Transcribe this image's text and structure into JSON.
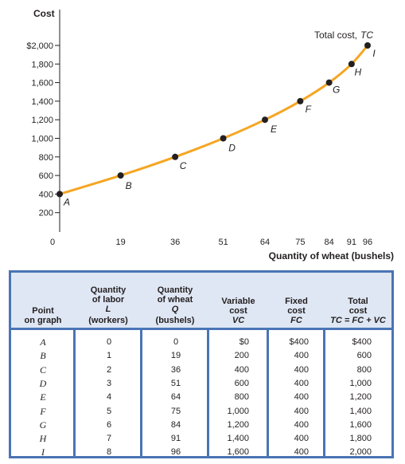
{
  "chart_data": {
    "type": "line",
    "ylabel": "Cost",
    "xlabel": "Quantity of wheat (bushels)",
    "y_ticks": [
      200,
      400,
      600,
      800,
      1000,
      1200,
      1400,
      1600,
      1800,
      2000
    ],
    "y_tick_labels": [
      "200",
      "400",
      "600",
      "800",
      "1,000",
      "1,200",
      "1,400",
      "1,600",
      "1,800",
      "$2,000"
    ],
    "x_ticks": [
      0,
      19,
      36,
      51,
      64,
      75,
      84,
      91,
      96
    ],
    "x_tick_labels": [
      "0",
      "19",
      "36",
      "51",
      "64",
      "75",
      "84",
      "91",
      "96"
    ],
    "xlim": [
      0,
      96
    ],
    "ylim": [
      0,
      2000
    ],
    "series": [
      {
        "name": "Total cost, TC",
        "color": "#f5a623",
        "points": [
          {
            "label": "A",
            "x": 0,
            "y": 400
          },
          {
            "label": "B",
            "x": 19,
            "y": 600
          },
          {
            "label": "C",
            "x": 36,
            "y": 800
          },
          {
            "label": "D",
            "x": 51,
            "y": 1000
          },
          {
            "label": "E",
            "x": 64,
            "y": 1200
          },
          {
            "label": "F",
            "x": 75,
            "y": 1400
          },
          {
            "label": "G",
            "x": 84,
            "y": 1600
          },
          {
            "label": "H",
            "x": 91,
            "y": 1800
          },
          {
            "label": "I",
            "x": 96,
            "y": 2000
          }
        ]
      }
    ],
    "curve_label": "Total cost,",
    "curve_label_it": "TC"
  },
  "table": {
    "border_color": "#4a74b5",
    "header_bg": "#dfe7f4",
    "headers": [
      {
        "lines": [
          "Point",
          "on graph"
        ]
      },
      {
        "lines": [
          "Quantity",
          "of labor"
        ],
        "sym": "L",
        "unit": "(workers)"
      },
      {
        "lines": [
          "Quantity",
          "of wheat"
        ],
        "sym": "Q",
        "unit": "(bushels)"
      },
      {
        "lines": [
          "Variable",
          "cost"
        ],
        "sym": "VC"
      },
      {
        "lines": [
          "Fixed",
          "cost"
        ],
        "sym": "FC"
      },
      {
        "lines": [
          "Total",
          "cost"
        ],
        "sym": "TC = FC + VC"
      }
    ],
    "columns": [
      [
        "A",
        "B",
        "C",
        "D",
        "E",
        "F",
        "G",
        "H",
        "I"
      ],
      [
        "0",
        "1",
        "2",
        "3",
        "4",
        "5",
        "6",
        "7",
        "8"
      ],
      [
        "0",
        "19",
        "36",
        "51",
        "64",
        "75",
        "84",
        "91",
        "96"
      ],
      [
        "$0",
        "200",
        "400",
        "600",
        "800",
        "1,000",
        "1,200",
        "1,400",
        "1,600"
      ],
      [
        "$400",
        "400",
        "400",
        "400",
        "400",
        "400",
        "400",
        "400",
        "400"
      ],
      [
        "$400",
        "600",
        "800",
        "1,000",
        "1,200",
        "1,400",
        "1,600",
        "1,800",
        "2,000"
      ]
    ]
  }
}
